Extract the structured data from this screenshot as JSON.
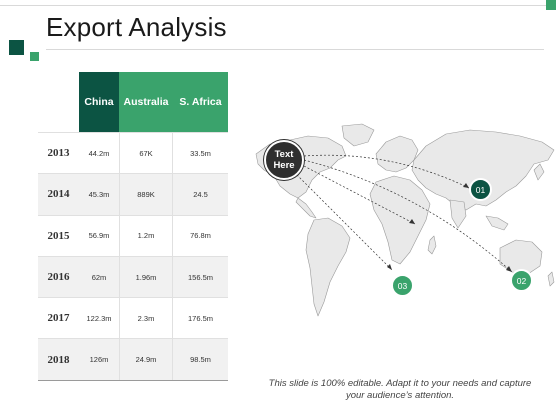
{
  "title": "Export Analysis",
  "colors": {
    "dark_green": "#0c5443",
    "green": "#3aa36c",
    "marker_dark": "#2f2f2f"
  },
  "table": {
    "headers": [
      "China",
      "Australia",
      "S. Africa"
    ],
    "rows": [
      {
        "year": "2013",
        "china": "44.2m",
        "australia": "67K",
        "safrica": "33.5m"
      },
      {
        "year": "2014",
        "china": "45.3m",
        "australia": "889K",
        "safrica": "24.5"
      },
      {
        "year": "2015",
        "china": "56.9m",
        "australia": "1.2m",
        "safrica": "76.8m"
      },
      {
        "year": "2016",
        "china": "62m",
        "australia": "1.96m",
        "safrica": "156.5m"
      },
      {
        "year": "2017",
        "china": "122.3m",
        "australia": "2.3m",
        "safrica": "176.5m"
      },
      {
        "year": "2018",
        "china": "126m",
        "australia": "24.9m",
        "safrica": "98.5m"
      }
    ]
  },
  "map": {
    "origin_label_line1": "Text",
    "origin_label_line2": "Here",
    "markers": [
      "01",
      "02",
      "03"
    ]
  },
  "caption": {
    "line1": "This slide is 100% editable. Adapt it to your needs and capture",
    "line2": "your audience’s attention."
  }
}
